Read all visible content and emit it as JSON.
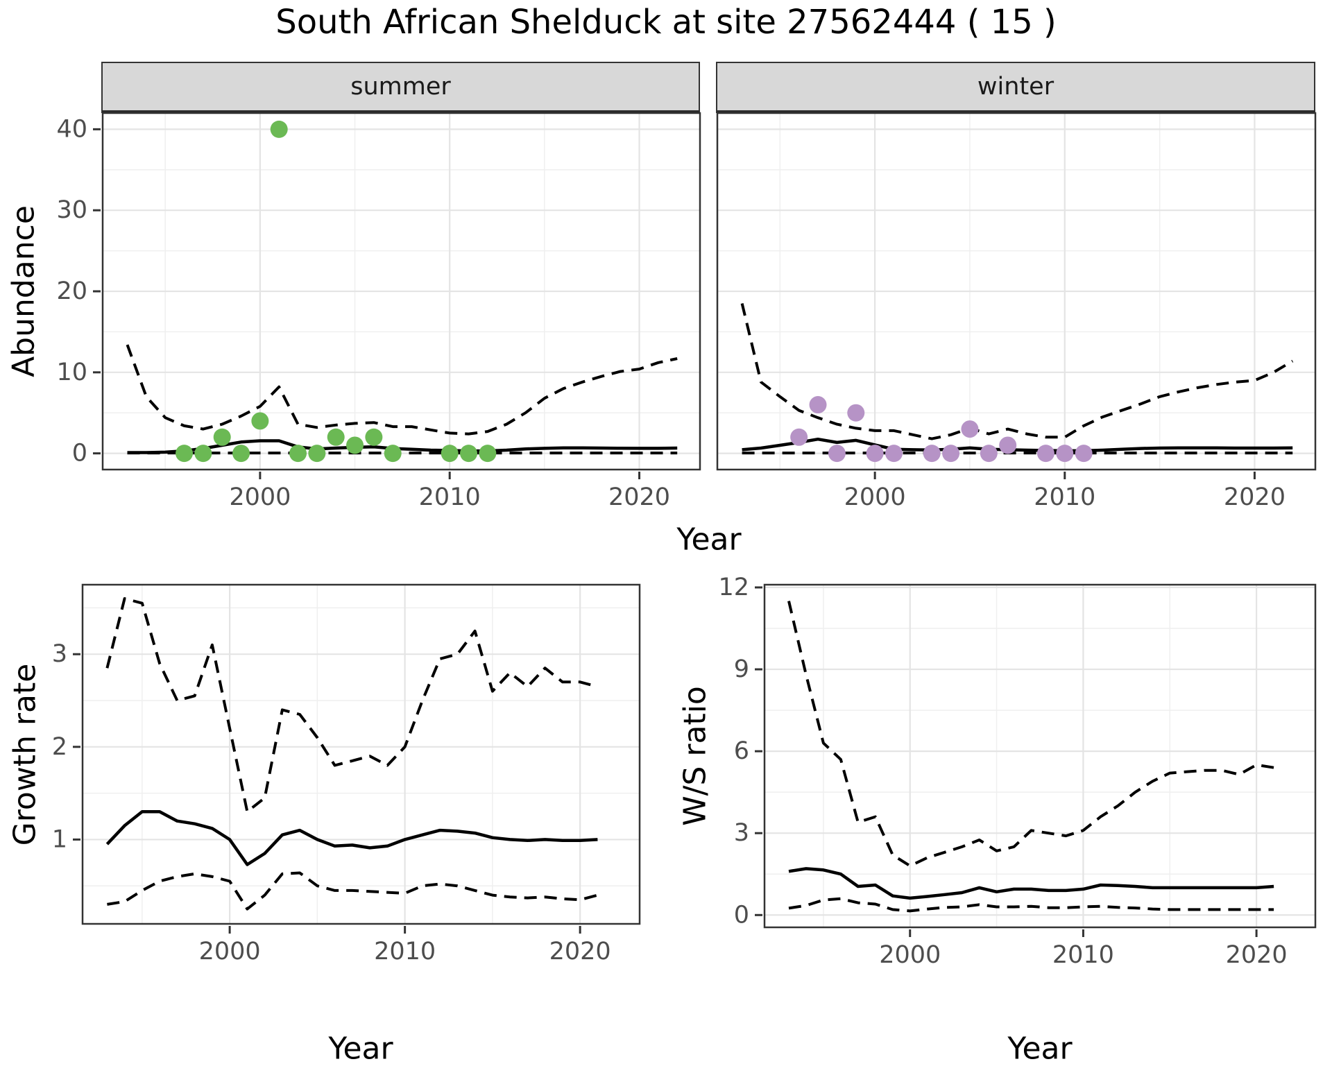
{
  "title": "South African Shelduck at site 27562444 ( 15 )",
  "axes": {
    "abundance_label": "Abundance",
    "year_label": "Year",
    "growth_label": "Growth rate",
    "ws_label": "W/S ratio"
  },
  "panels": {
    "summer": {
      "strip_label": "summer"
    },
    "winter": {
      "strip_label": "winter"
    }
  },
  "colors": {
    "observed_summer": "#6bb954",
    "observed_winter": "#b693c6",
    "line": "#000000",
    "grid_major": "#e4e4e4",
    "grid_minor": "#efefef",
    "panel_border": "#333333",
    "tick_text": "#4d4d4d",
    "strip_bg": "#d8d8d8"
  },
  "chart_data": [
    {
      "name": "summer",
      "type": "line+scatter",
      "facet": "summer",
      "xlabel": "Year",
      "ylabel": "Abundance",
      "xlim": [
        1991.7,
        2023.2
      ],
      "ylim": [
        -2,
        42
      ],
      "xticks": [
        2000,
        2010,
        2020
      ],
      "xticks_minor": [
        1995,
        2005,
        2015
      ],
      "yticks": [
        0,
        10,
        20,
        30,
        40
      ],
      "yticks_minor": [
        5,
        15,
        25,
        35
      ],
      "show_y_labels": true,
      "grid": true,
      "x": [
        1993,
        1994,
        1995,
        1996,
        1997,
        1998,
        1999,
        2000,
        2001,
        2002,
        2003,
        2004,
        2005,
        2006,
        2007,
        2008,
        2009,
        2010,
        2011,
        2012,
        2013,
        2014,
        2015,
        2016,
        2017,
        2018,
        2019,
        2020,
        2021,
        2022
      ],
      "series": [
        {
          "name": "upper_ci",
          "style": "dashed",
          "values": [
            13.4,
            7.0,
            4.4,
            3.4,
            3.0,
            3.6,
            4.6,
            5.8,
            8.2,
            3.6,
            3.2,
            3.5,
            3.7,
            3.8,
            3.3,
            3.3,
            2.9,
            2.5,
            2.4,
            2.7,
            3.6,
            5.0,
            6.8,
            8.0,
            8.8,
            9.5,
            10.1,
            10.4,
            11.2,
            11.7
          ]
        },
        {
          "name": "lower_ci",
          "style": "dashed",
          "values": [
            0.05,
            0.05,
            0.05,
            0.05,
            0.05,
            0.05,
            0.05,
            0.05,
            0.05,
            0.05,
            0.05,
            0.05,
            0.05,
            0.05,
            0.05,
            0.05,
            0.05,
            0.05,
            0.05,
            0.05,
            0.05,
            0.05,
            0.05,
            0.05,
            0.05,
            0.05,
            0.05,
            0.05,
            0.05,
            0.05
          ]
        },
        {
          "name": "median_fit",
          "style": "solid",
          "values": [
            0.1,
            0.1,
            0.15,
            0.3,
            0.6,
            1.0,
            1.4,
            1.55,
            1.55,
            0.8,
            0.55,
            0.65,
            0.75,
            0.8,
            0.6,
            0.5,
            0.4,
            0.35,
            0.3,
            0.3,
            0.4,
            0.55,
            0.62,
            0.68,
            0.68,
            0.65,
            0.63,
            0.62,
            0.62,
            0.65
          ]
        }
      ],
      "points": {
        "name": "observed_counts",
        "color_key": "observed_summer",
        "x": [
          1996,
          1997,
          1998,
          1999,
          2000,
          2001,
          2002,
          2003,
          2004,
          2005,
          2006,
          2007,
          2010,
          2011,
          2012
        ],
        "y": [
          0,
          0,
          2,
          0,
          4,
          40,
          0,
          0,
          2,
          1,
          2,
          0,
          0,
          0,
          0
        ]
      }
    },
    {
      "name": "winter",
      "type": "line+scatter",
      "facet": "winter",
      "xlabel": "Year",
      "ylabel": "Abundance",
      "xlim": [
        1991.7,
        2023.2
      ],
      "ylim": [
        -2,
        42
      ],
      "xticks": [
        2000,
        2010,
        2020
      ],
      "xticks_minor": [
        1995,
        2005,
        2015
      ],
      "yticks": [
        0,
        10,
        20,
        30,
        40
      ],
      "yticks_minor": [
        5,
        15,
        25,
        35
      ],
      "show_y_labels": false,
      "grid": true,
      "x": [
        1993,
        1994,
        1995,
        1996,
        1997,
        1998,
        1999,
        2000,
        2001,
        2002,
        2003,
        2004,
        2005,
        2006,
        2007,
        2008,
        2009,
        2010,
        2011,
        2012,
        2013,
        2014,
        2015,
        2016,
        2017,
        2018,
        2019,
        2020,
        2021,
        2022
      ],
      "series": [
        {
          "name": "upper_ci",
          "style": "dashed",
          "values": [
            18.5,
            8.8,
            7.0,
            5.3,
            4.4,
            3.6,
            3.1,
            2.8,
            2.8,
            2.3,
            1.8,
            2.3,
            3.1,
            2.4,
            3.0,
            2.4,
            2.0,
            2.0,
            3.4,
            4.5,
            5.3,
            6.1,
            7.0,
            7.6,
            8.1,
            8.5,
            8.8,
            9.0,
            10.0,
            11.4
          ]
        },
        {
          "name": "lower_ci",
          "style": "dashed",
          "values": [
            0.05,
            0.05,
            0.05,
            0.05,
            0.05,
            0.05,
            0.05,
            0.05,
            0.05,
            0.05,
            0.05,
            0.05,
            0.05,
            0.05,
            0.05,
            0.05,
            0.05,
            0.05,
            0.05,
            0.05,
            0.05,
            0.05,
            0.05,
            0.05,
            0.05,
            0.05,
            0.05,
            0.05,
            0.05,
            0.05
          ]
        },
        {
          "name": "median_fit",
          "style": "solid",
          "values": [
            0.45,
            0.65,
            1.0,
            1.35,
            1.75,
            1.35,
            1.6,
            1.05,
            0.5,
            0.45,
            0.42,
            0.5,
            0.68,
            0.5,
            0.45,
            0.4,
            0.35,
            0.32,
            0.32,
            0.4,
            0.5,
            0.6,
            0.65,
            0.68,
            0.68,
            0.67,
            0.65,
            0.65,
            0.65,
            0.68
          ]
        }
      ],
      "points": {
        "name": "observed_counts",
        "color_key": "observed_winter",
        "x": [
          1996,
          1997,
          1998,
          1999,
          2000,
          2001,
          2003,
          2004,
          2005,
          2006,
          2007,
          2009,
          2010,
          2011
        ],
        "y": [
          2,
          6,
          0,
          5,
          0,
          0,
          0,
          0,
          3,
          0,
          1,
          0,
          0,
          0
        ]
      }
    },
    {
      "name": "growth",
      "type": "line",
      "xlabel": "Year",
      "ylabel": "Growth rate",
      "xlim": [
        1991.6,
        2023.4
      ],
      "ylim": [
        0.09,
        3.75
      ],
      "xticks": [
        2000,
        2010,
        2020
      ],
      "xticks_minor": [
        1995,
        2005,
        2015
      ],
      "yticks": [
        1,
        2,
        3
      ],
      "yticks_minor": [
        0.5,
        1.5,
        2.5,
        3.5
      ],
      "show_y_labels": true,
      "grid": true,
      "x": [
        1993,
        1994,
        1995,
        1996,
        1997,
        1998,
        1999,
        2000,
        2001,
        2002,
        2003,
        2004,
        2005,
        2006,
        2007,
        2008,
        2009,
        2010,
        2011,
        2012,
        2013,
        2014,
        2015,
        2016,
        2017,
        2018,
        2019,
        2020,
        2021
      ],
      "series": [
        {
          "name": "upper_ci",
          "style": "dashed",
          "values": [
            2.85,
            3.6,
            3.55,
            2.9,
            2.5,
            2.55,
            3.1,
            2.2,
            1.3,
            1.45,
            2.4,
            2.35,
            2.1,
            1.8,
            1.85,
            1.9,
            1.8,
            2.0,
            2.5,
            2.95,
            3.0,
            3.25,
            2.6,
            2.8,
            2.65,
            2.85,
            2.7,
            2.7,
            2.65
          ]
        },
        {
          "name": "lower_ci",
          "style": "dashed",
          "values": [
            0.3,
            0.33,
            0.45,
            0.55,
            0.6,
            0.63,
            0.6,
            0.55,
            0.25,
            0.4,
            0.63,
            0.64,
            0.5,
            0.45,
            0.45,
            0.44,
            0.43,
            0.42,
            0.5,
            0.52,
            0.5,
            0.45,
            0.4,
            0.38,
            0.37,
            0.38,
            0.36,
            0.35,
            0.4
          ]
        },
        {
          "name": "median_fit",
          "style": "solid",
          "values": [
            0.95,
            1.15,
            1.3,
            1.3,
            1.2,
            1.17,
            1.12,
            1.0,
            0.73,
            0.85,
            1.05,
            1.1,
            1.0,
            0.93,
            0.94,
            0.91,
            0.93,
            1.0,
            1.05,
            1.1,
            1.09,
            1.07,
            1.02,
            1.0,
            0.99,
            1.0,
            0.99,
            0.99,
            1.0
          ]
        }
      ]
    },
    {
      "name": "ws",
      "type": "line",
      "xlabel": "Year",
      "ylabel": "W/S ratio",
      "xlim": [
        1991.6,
        2023.4
      ],
      "ylim": [
        -0.45,
        12.1
      ],
      "xticks": [
        2000,
        2010,
        2020
      ],
      "xticks_minor": [
        1995,
        2005,
        2015
      ],
      "yticks": [
        0,
        3,
        6,
        9,
        12
      ],
      "yticks_minor": [
        1.5,
        4.5,
        7.5,
        10.5
      ],
      "show_y_labels": true,
      "grid": true,
      "x": [
        1993,
        1994,
        1995,
        1996,
        1997,
        1998,
        1999,
        2000,
        2001,
        2002,
        2003,
        2004,
        2005,
        2006,
        2007,
        2008,
        2009,
        2010,
        2011,
        2012,
        2013,
        2014,
        2015,
        2016,
        2017,
        2018,
        2019,
        2020,
        2021
      ],
      "series": [
        {
          "name": "upper_ci",
          "style": "dashed",
          "values": [
            11.5,
            8.8,
            6.3,
            5.7,
            3.4,
            3.6,
            2.2,
            1.8,
            2.1,
            2.3,
            2.5,
            2.75,
            2.35,
            2.5,
            3.1,
            3.0,
            2.9,
            3.1,
            3.6,
            4.0,
            4.5,
            4.9,
            5.2,
            5.25,
            5.3,
            5.3,
            5.15,
            5.5,
            5.4
          ]
        },
        {
          "name": "lower_ci",
          "style": "dashed",
          "values": [
            0.25,
            0.35,
            0.55,
            0.6,
            0.45,
            0.4,
            0.2,
            0.15,
            0.22,
            0.28,
            0.3,
            0.38,
            0.3,
            0.3,
            0.32,
            0.27,
            0.27,
            0.3,
            0.32,
            0.28,
            0.26,
            0.22,
            0.2,
            0.2,
            0.2,
            0.2,
            0.2,
            0.2,
            0.2
          ]
        },
        {
          "name": "median_fit",
          "style": "solid",
          "values": [
            1.6,
            1.7,
            1.65,
            1.5,
            1.05,
            1.1,
            0.7,
            0.62,
            0.68,
            0.75,
            0.82,
            1.0,
            0.85,
            0.95,
            0.95,
            0.9,
            0.9,
            0.95,
            1.1,
            1.08,
            1.05,
            1.0,
            1.0,
            1.0,
            1.0,
            1.0,
            1.0,
            1.0,
            1.05
          ]
        }
      ]
    }
  ]
}
